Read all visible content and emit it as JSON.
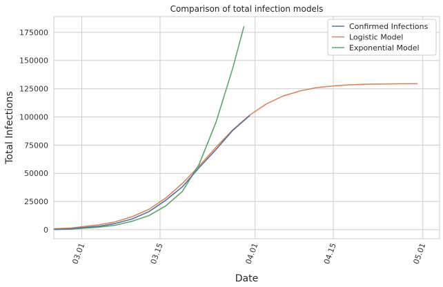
{
  "chart_data": {
    "type": "line",
    "title": "Comparison of total infection models",
    "xlabel": "Date",
    "ylabel": "Total Infections",
    "x_ticks": [
      "03.01",
      "03.15",
      "04.01",
      "04.15",
      "05.01"
    ],
    "y_ticks": [
      "0",
      "25000",
      "50000",
      "75000",
      "100000",
      "125000",
      "150000",
      "175000"
    ],
    "xlim_day_of_year": [
      55,
      124
    ],
    "ylim": [
      -8000,
      189000
    ],
    "grid": true,
    "legend_position": "top-right",
    "series": [
      {
        "name": "Confirmed Infections",
        "color": "#4c72b0",
        "x": [
          "02.24",
          "02.27",
          "03.01",
          "03.04",
          "03.07",
          "03.10",
          "03.13",
          "03.16",
          "03.19",
          "03.22",
          "03.25",
          "03.28",
          "03.31"
        ],
        "y": [
          200,
          700,
          1800,
          3000,
          5500,
          9500,
          16000,
          26000,
          38000,
          55000,
          71000,
          88000,
          101000
        ]
      },
      {
        "name": "Logistic Model",
        "color": "#dd8452",
        "x": [
          "02.24",
          "02.27",
          "03.01",
          "03.04",
          "03.07",
          "03.10",
          "03.13",
          "03.16",
          "03.19",
          "03.22",
          "03.25",
          "03.28",
          "03.31",
          "04.03",
          "04.06",
          "04.09",
          "04.12",
          "04.15",
          "04.18",
          "04.21",
          "04.24",
          "04.27",
          "04.30"
        ],
        "y": [
          900,
          1500,
          2600,
          4300,
          7000,
          11500,
          18000,
          28000,
          41000,
          56500,
          73000,
          88500,
          101500,
          111500,
          118500,
          123000,
          126000,
          127500,
          128500,
          129000,
          129200,
          129400,
          129500
        ]
      },
      {
        "name": "Exponential Model",
        "color": "#55a868",
        "x": [
          "02.24",
          "02.27",
          "03.01",
          "03.04",
          "03.07",
          "03.10",
          "03.13",
          "03.16",
          "03.19",
          "03.22",
          "03.25",
          "03.28",
          "03.30"
        ],
        "y": [
          200,
          500,
          1200,
          2200,
          4000,
          7500,
          12500,
          21000,
          34000,
          58000,
          95000,
          143000,
          180000
        ]
      }
    ]
  }
}
